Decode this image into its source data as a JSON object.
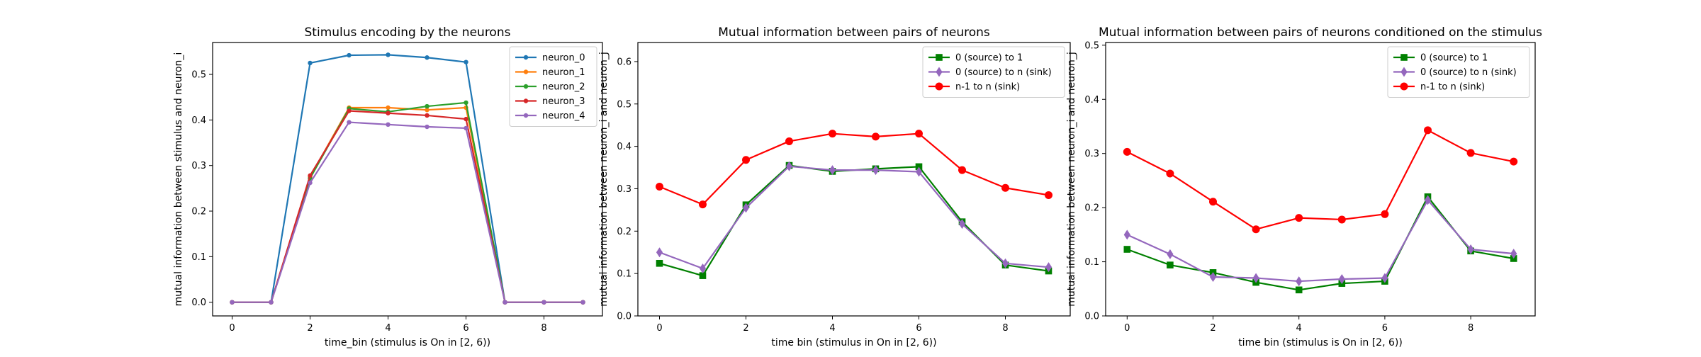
{
  "chart_data": [
    {
      "type": "line",
      "title": "Stimulus encoding by the neurons",
      "xlabel": "time_bin (stimulus is On in [2, 6))",
      "ylabel": "mutual information between stimulus and neuron_i",
      "xlim": [
        -0.5,
        9.5
      ],
      "ylim": [
        -0.03,
        0.57
      ],
      "xticks": [
        0,
        2,
        4,
        6,
        8
      ],
      "yticks": [
        0.0,
        0.1,
        0.2,
        0.3,
        0.4,
        0.5
      ],
      "ytick_format": 1,
      "grid": false,
      "legend": "top-right",
      "x": [
        0,
        1,
        2,
        3,
        4,
        5,
        6,
        7,
        8,
        9
      ],
      "series": [
        {
          "name": "neuron_0",
          "color": "#1f77b4",
          "marker": "point",
          "values": [
            0.0,
            0.0,
            0.525,
            0.542,
            0.543,
            0.537,
            0.527,
            0.0,
            0.0,
            0.0
          ]
        },
        {
          "name": "neuron_1",
          "color": "#ff7f0e",
          "marker": "point",
          "values": [
            0.0,
            0.0,
            0.275,
            0.427,
            0.427,
            0.422,
            0.427,
            0.0,
            0.0,
            0.0
          ]
        },
        {
          "name": "neuron_2",
          "color": "#2ca02c",
          "marker": "point",
          "values": [
            0.0,
            0.0,
            0.272,
            0.425,
            0.418,
            0.43,
            0.438,
            0.0,
            0.0,
            0.0
          ]
        },
        {
          "name": "neuron_3",
          "color": "#d62728",
          "marker": "point",
          "values": [
            0.0,
            0.0,
            0.278,
            0.42,
            0.415,
            0.41,
            0.402,
            0.0,
            0.0,
            0.0
          ]
        },
        {
          "name": "neuron_4",
          "color": "#9467bd",
          "marker": "point",
          "values": [
            0.0,
            0.0,
            0.262,
            0.395,
            0.39,
            0.385,
            0.382,
            0.0,
            0.0,
            0.0
          ]
        }
      ]
    },
    {
      "type": "line",
      "title": "Mutual information between pairs of neurons",
      "xlabel": "time bin (stimulus in On in [2, 6))",
      "ylabel": "mutual information between neuron_i and neuron_j",
      "xlim": [
        -0.5,
        9.5
      ],
      "ylim": [
        0.0,
        0.645
      ],
      "xticks": [
        0,
        2,
        4,
        6,
        8
      ],
      "yticks": [
        0.0,
        0.1,
        0.2,
        0.3,
        0.4,
        0.5,
        0.6
      ],
      "ytick_format": 1,
      "grid": false,
      "legend": "top-right",
      "x": [
        0,
        1,
        2,
        3,
        4,
        5,
        6,
        7,
        8,
        9
      ],
      "series": [
        {
          "name": "0 (source) to 1",
          "color": "#008000",
          "marker": "square",
          "values": [
            0.124,
            0.095,
            0.262,
            0.355,
            0.341,
            0.347,
            0.352,
            0.222,
            0.12,
            0.106
          ]
        },
        {
          "name": "0 (source) to n (sink)",
          "color": "#9467bd",
          "marker": "diamond",
          "values": [
            0.15,
            0.112,
            0.255,
            0.353,
            0.344,
            0.344,
            0.34,
            0.217,
            0.124,
            0.115
          ]
        },
        {
          "name": "n-1 to n (sink)",
          "color": "#ff0000",
          "marker": "circle",
          "values": [
            0.305,
            0.263,
            0.368,
            0.412,
            0.43,
            0.423,
            0.43,
            0.344,
            0.302,
            0.285
          ]
        }
      ]
    },
    {
      "type": "line",
      "title": "Mutual information between pairs of neurons conditioned on the stimulus",
      "xlabel": "time bin (stimulus is On in [2, 6))",
      "ylabel": "mutual information between neuron_i and neuron_j",
      "xlim": [
        -0.5,
        9.5
      ],
      "ylim": [
        0.0,
        0.505
      ],
      "xticks": [
        0,
        2,
        4,
        6,
        8
      ],
      "yticks": [
        0.0,
        0.1,
        0.2,
        0.3,
        0.4,
        0.5
      ],
      "ytick_format": 1,
      "grid": false,
      "legend": "top-right",
      "x": [
        0,
        1,
        2,
        3,
        4,
        5,
        6,
        7,
        8,
        9
      ],
      "series": [
        {
          "name": "0 (source) to 1",
          "color": "#008000",
          "marker": "square",
          "values": [
            0.123,
            0.094,
            0.08,
            0.062,
            0.048,
            0.06,
            0.064,
            0.22,
            0.12,
            0.106
          ]
        },
        {
          "name": "0 (source) to n (sink)",
          "color": "#9467bd",
          "marker": "diamond",
          "values": [
            0.15,
            0.114,
            0.072,
            0.07,
            0.064,
            0.068,
            0.07,
            0.214,
            0.123,
            0.115
          ]
        },
        {
          "name": "n-1 to n (sink)",
          "color": "#ff0000",
          "marker": "circle",
          "values": [
            0.303,
            0.263,
            0.211,
            0.16,
            0.181,
            0.178,
            0.188,
            0.343,
            0.301,
            0.285
          ]
        }
      ]
    }
  ]
}
